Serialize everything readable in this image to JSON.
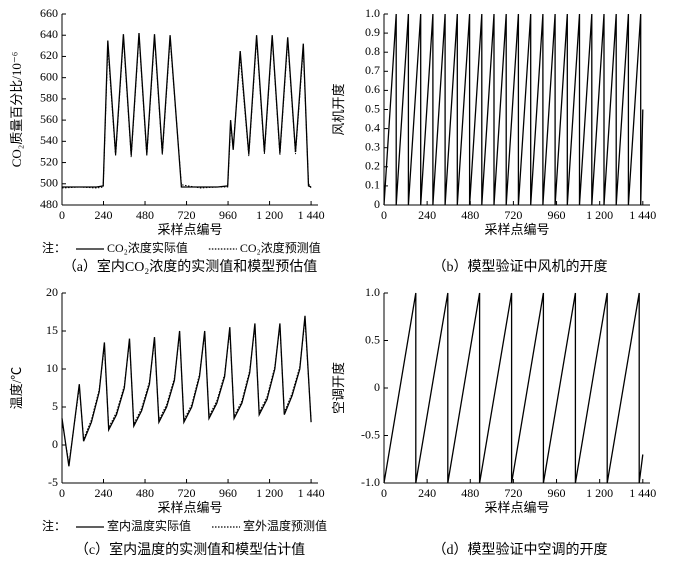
{
  "chart_data": [
    {
      "type": "line",
      "x_label": "采样点编号",
      "y_label": "CO₂质量百分比/10⁻⁶",
      "note": "注：",
      "caption": "（a）室内CO₂浓度的实测值和模型预估值",
      "xlim": [
        0,
        1480
      ],
      "ylim": [
        480,
        660
      ],
      "xticks": [
        0,
        240,
        480,
        720,
        960,
        {
          "value": 1200,
          "label": "1 200"
        },
        {
          "value": 1440,
          "label": "1 440"
        }
      ],
      "yticks": [
        480,
        500,
        520,
        540,
        560,
        580,
        600,
        620,
        640,
        660
      ],
      "x": [
        0,
        100,
        200,
        238,
        265,
        310,
        355,
        400,
        445,
        490,
        535,
        580,
        625,
        690,
        800,
        900,
        958,
        975,
        990,
        1030,
        1080,
        1125,
        1170,
        1215,
        1260,
        1305,
        1350,
        1395,
        1425,
        1440
      ],
      "series": [
        {
          "name": "CO₂浓度实际值",
          "color": "#000000",
          "line_style": "solid",
          "values": [
            497,
            497,
            497,
            498,
            635,
            528,
            641,
            527,
            642,
            528,
            641,
            529,
            640,
            497,
            497,
            497,
            498,
            560,
            532,
            625,
            528,
            640,
            530,
            640,
            529,
            638,
            530,
            632,
            498,
            497
          ]
        },
        {
          "name": "CO₂浓度预测值",
          "color": "#000000",
          "line_style": "dotted",
          "values": [
            496,
            497,
            496,
            497,
            630,
            526,
            638,
            525,
            640,
            526,
            638,
            527,
            637,
            499,
            496,
            497,
            497,
            555,
            535,
            620,
            526,
            637,
            528,
            638,
            527,
            635,
            528,
            628,
            500,
            496
          ]
        }
      ]
    },
    {
      "type": "line",
      "x_label": "采样点编号",
      "y_label": "风机开度",
      "caption": "（b）模型验证中风机的开度",
      "xlim": [
        0,
        1480
      ],
      "ylim": [
        0,
        1
      ],
      "xticks": [
        0,
        240,
        480,
        720,
        960,
        {
          "value": 1200,
          "label": "1 200"
        },
        {
          "value": 1440,
          "label": "1 440"
        }
      ],
      "yticks": [
        0,
        0.1,
        0.2,
        0.3,
        0.4,
        0.5,
        0.6,
        0.7,
        0.8,
        0.9,
        {
          "value": 1,
          "label": "1.0"
        }
      ],
      "x": [
        0,
        68,
        68,
        136,
        136,
        204,
        204,
        272,
        272,
        340,
        340,
        408,
        408,
        476,
        476,
        544,
        544,
        612,
        612,
        680,
        680,
        748,
        748,
        816,
        816,
        884,
        884,
        952,
        952,
        1020,
        1020,
        1088,
        1088,
        1156,
        1156,
        1224,
        1224,
        1292,
        1292,
        1360,
        1360,
        1428,
        1428,
        1440
      ],
      "color": "#000000",
      "values": [
        0,
        1,
        0,
        1,
        0,
        1,
        0,
        1,
        0,
        1,
        0,
        1,
        0,
        1,
        0,
        1,
        0,
        1,
        0,
        1,
        0,
        1,
        0,
        1,
        0,
        1,
        0,
        1,
        0,
        1,
        0,
        1,
        0,
        1,
        0,
        1,
        0,
        1,
        0,
        1,
        0,
        1,
        0,
        0.5
      ]
    },
    {
      "type": "line",
      "x_label": "采样点编号",
      "y_label": "温度/℃",
      "note": "注：",
      "caption": "（c）室内温度的实测值和模型估计值",
      "xlim": [
        0,
        1480
      ],
      "ylim": [
        -5,
        20
      ],
      "xticks": [
        0,
        240,
        480,
        720,
        960,
        {
          "value": 1200,
          "label": "1 200"
        },
        {
          "value": 1440,
          "label": "1 440"
        }
      ],
      "yticks": [
        -5,
        0,
        5,
        10,
        15,
        20
      ],
      "x": [
        0,
        40,
        100,
        125,
        170,
        215,
        245,
        270,
        315,
        360,
        390,
        415,
        460,
        505,
        535,
        560,
        605,
        650,
        680,
        705,
        750,
        795,
        825,
        850,
        895,
        940,
        970,
        995,
        1040,
        1085,
        1115,
        1140,
        1185,
        1230,
        1260,
        1285,
        1330,
        1375,
        1405,
        1440
      ],
      "series": [
        {
          "name": "室内温度实际值",
          "color": "#000000",
          "line_style": "solid",
          "values": [
            3.5,
            -2.8,
            8,
            0.5,
            3,
            7,
            13.5,
            2,
            4,
            7.5,
            14,
            2.5,
            4.5,
            8,
            14.2,
            3,
            5,
            8.5,
            15,
            3,
            5,
            9,
            15,
            3.5,
            5.5,
            9,
            15.5,
            3.5,
            5.5,
            9.5,
            16,
            4,
            6,
            10,
            16,
            4,
            6.5,
            10,
            17,
            3
          ]
        },
        {
          "name": "室外温度预测值",
          "color": "#000000",
          "line_style": "dotted",
          "values": [
            3.2,
            -2.5,
            7.6,
            0.8,
            3.3,
            7.3,
            13,
            2.3,
            4.3,
            7.8,
            13.6,
            2.8,
            4.8,
            8.3,
            13.8,
            3.3,
            5.3,
            8.8,
            14.6,
            3.3,
            5.3,
            9.3,
            14.7,
            3.8,
            5.8,
            9.3,
            15.1,
            3.8,
            5.8,
            9.8,
            15.6,
            4.3,
            6.3,
            10.3,
            15.7,
            4.3,
            6.8,
            10.3,
            16.5,
            3.2
          ]
        }
      ]
    },
    {
      "type": "line",
      "x_label": "采样点编号",
      "y_label": "空调开度",
      "caption": "（d）模型验证中空调的开度",
      "xlim": [
        0,
        1480
      ],
      "ylim": [
        -1,
        1
      ],
      "xticks": [
        0,
        240,
        480,
        720,
        960,
        {
          "value": 1200,
          "label": "1 200"
        },
        {
          "value": 1440,
          "label": "1 440"
        }
      ],
      "yticks": [
        {
          "value": -1,
          "label": "-1.0"
        },
        -0.5,
        0,
        0.5,
        {
          "value": 1,
          "label": "1.0"
        }
      ],
      "x": [
        0,
        177,
        177,
        355,
        355,
        532,
        532,
        710,
        710,
        887,
        887,
        1065,
        1065,
        1242,
        1242,
        1420,
        1420,
        1440
      ],
      "color": "#000000",
      "values": [
        -1,
        1,
        -1,
        1,
        -1,
        1,
        -1,
        1,
        -1,
        1,
        -1,
        1,
        -1,
        1,
        -1,
        1,
        -1,
        -0.7
      ]
    }
  ]
}
